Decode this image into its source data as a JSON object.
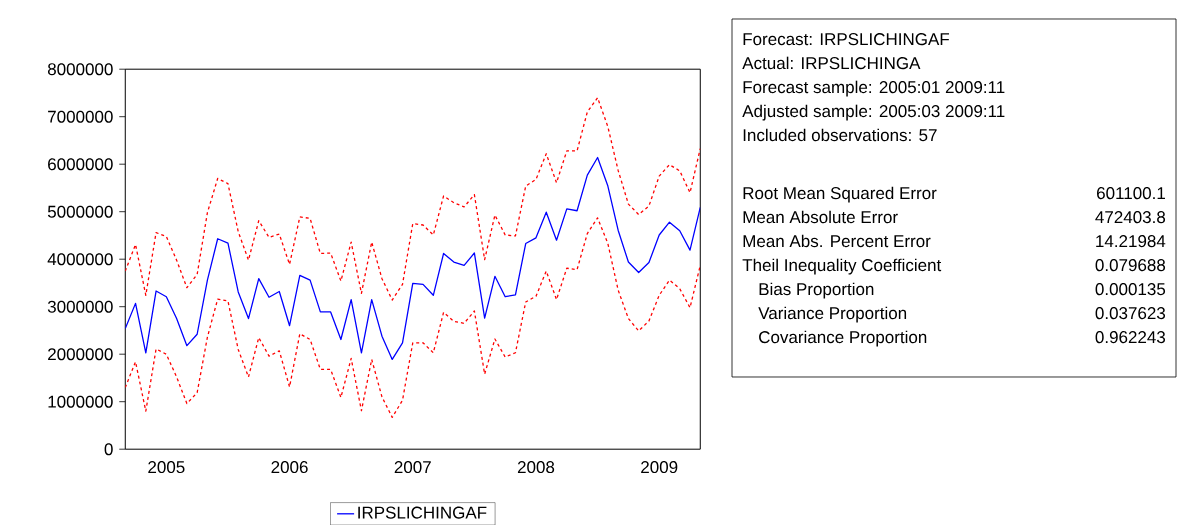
{
  "chart_data": {
    "type": "line",
    "x": [
      "2005-03",
      "2005-04",
      "2005-05",
      "2005-06",
      "2005-07",
      "2005-08",
      "2005-09",
      "2005-10",
      "2005-11",
      "2005-12",
      "2006-01",
      "2006-02",
      "2006-03",
      "2006-04",
      "2006-05",
      "2006-06",
      "2006-07",
      "2006-08",
      "2006-09",
      "2006-10",
      "2006-11",
      "2006-12",
      "2007-01",
      "2007-02",
      "2007-03",
      "2007-04",
      "2007-05",
      "2007-06",
      "2007-07",
      "2007-08",
      "2007-09",
      "2007-10",
      "2007-11",
      "2007-12",
      "2008-01",
      "2008-02",
      "2008-03",
      "2008-04",
      "2008-05",
      "2008-06",
      "2008-07",
      "2008-08",
      "2008-09",
      "2008-10",
      "2008-11",
      "2008-12",
      "2009-01",
      "2009-02",
      "2009-03",
      "2009-04",
      "2009-05",
      "2009-06",
      "2009-07",
      "2009-08",
      "2009-09",
      "2009-10",
      "2009-11"
    ],
    "series": [
      {
        "name": "IRPSLICHINGAF",
        "color": "#0000ff",
        "line_style": "solid",
        "values": [
          2540000,
          3070000,
          2030000,
          3330000,
          3210000,
          2750000,
          2180000,
          2420000,
          3560000,
          4430000,
          4340000,
          3310000,
          2750000,
          3590000,
          3200000,
          3320000,
          2600000,
          3660000,
          3560000,
          2890000,
          2890000,
          2310000,
          3150000,
          2030000,
          3150000,
          2380000,
          1890000,
          2240000,
          3490000,
          3470000,
          3240000,
          4120000,
          3940000,
          3870000,
          4130000,
          2760000,
          3640000,
          3210000,
          3250000,
          4330000,
          4450000,
          4990000,
          4400000,
          5060000,
          5020000,
          5770000,
          6140000,
          5540000,
          4610000,
          3940000,
          3720000,
          3930000,
          4510000,
          4780000,
          4600000,
          4190000,
          5090000
        ]
      },
      {
        "color": "#ff0000",
        "line_style": "dashed",
        "values": [
          3750000,
          4310000,
          3240000,
          4560000,
          4480000,
          3980000,
          3400000,
          3680000,
          4980000,
          5700000,
          5590000,
          4580000,
          3980000,
          4810000,
          4460000,
          4530000,
          3890000,
          4890000,
          4860000,
          4120000,
          4130000,
          3540000,
          4360000,
          3280000,
          4360000,
          3590000,
          3140000,
          3470000,
          4750000,
          4720000,
          4510000,
          5330000,
          5190000,
          5100000,
          5360000,
          3990000,
          4930000,
          4510000,
          4490000,
          5540000,
          5680000,
          6220000,
          5610000,
          6280000,
          6280000,
          7100000,
          7400000,
          6790000,
          5870000,
          5160000,
          4940000,
          5120000,
          5750000,
          5990000,
          5860000,
          5400000,
          6330000
        ]
      },
      {
        "color": "#ff0000",
        "line_style": "dashed",
        "values": [
          1300000,
          1840000,
          800000,
          2110000,
          2000000,
          1520000,
          960000,
          1190000,
          2360000,
          3160000,
          3120000,
          2100000,
          1520000,
          2350000,
          1960000,
          2070000,
          1310000,
          2430000,
          2310000,
          1680000,
          1680000,
          1090000,
          1910000,
          810000,
          1890000,
          1100000,
          670000,
          1030000,
          2240000,
          2240000,
          2030000,
          2880000,
          2690000,
          2650000,
          2910000,
          1580000,
          2320000,
          1940000,
          2030000,
          3100000,
          3220000,
          3750000,
          3150000,
          3810000,
          3780000,
          4540000,
          4870000,
          4330000,
          3350000,
          2750000,
          2490000,
          2700000,
          3240000,
          3560000,
          3380000,
          2980000,
          3870000
        ]
      }
    ],
    "xlim": [
      "2005-03",
      "2009-11"
    ],
    "xticks": [
      {
        "value": "2005-07",
        "label": "2005"
      },
      {
        "value": "2006-07",
        "label": "2006"
      },
      {
        "value": "2007-07",
        "label": "2007"
      },
      {
        "value": "2008-07",
        "label": "2008"
      },
      {
        "value": "2009-07",
        "label": "2009"
      }
    ],
    "ylim": [
      0,
      8000000
    ],
    "yticks": [
      0,
      1000000,
      2000000,
      3000000,
      4000000,
      5000000,
      6000000,
      7000000,
      8000000
    ],
    "legend": "bottom",
    "grid": false,
    "marker": "none",
    "annotations": [
      "Forecast: IRPSLICHINGAF",
      "Actual: IRPSLICHINGA",
      "Forecast sample: 2005:01 2009:11",
      "Adjusted sample: 2005:03 2009:11",
      "Included observations: 57",
      "Root Mean Squared Error",
      "601100.1",
      "Mean Absolute Error",
      "472403.8",
      "Mean Abs. Percent Error",
      "14.21984",
      "Theil Inequality Coefficient",
      "0.079688",
      "Bias Proportion",
      "0.000135",
      "Variance Proportion",
      "0.037623",
      "Covariance Proportion",
      "0.962243"
    ]
  }
}
